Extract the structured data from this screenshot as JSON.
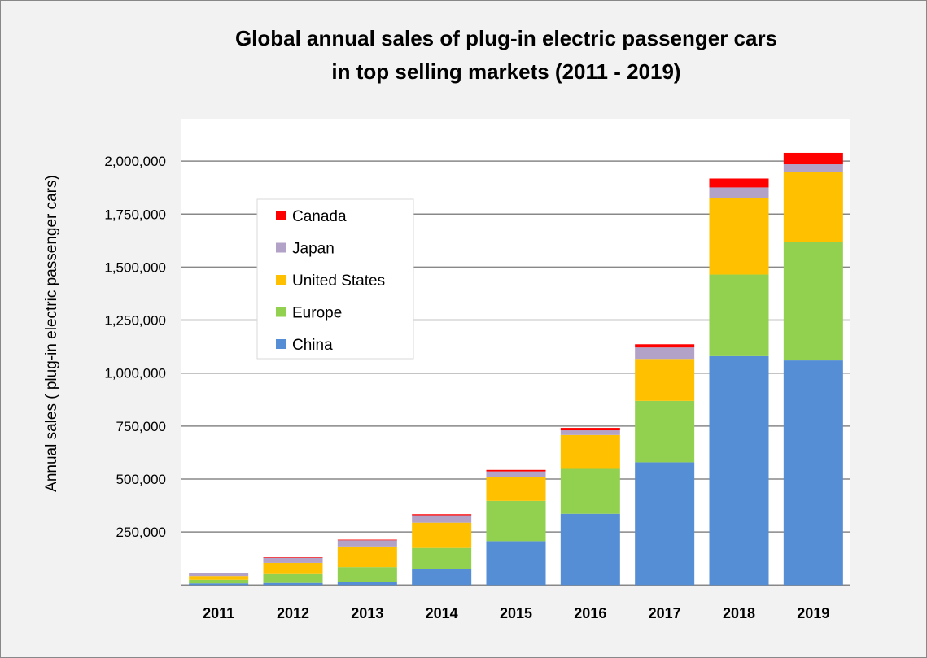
{
  "chart_data": {
    "type": "bar",
    "stacked": true,
    "title": [
      "Global annual sales of plug-in electric passenger cars",
      "in top selling markets (2011 - 2019)"
    ],
    "xlabel": "",
    "ylabel": "Annual sales ( plug-in electric passenger cars)",
    "ylim": [
      0,
      2200000
    ],
    "yticks": [
      250000,
      500000,
      750000,
      1000000,
      1250000,
      1500000,
      1750000,
      2000000
    ],
    "ytick_labels": [
      "250,000",
      "500,000",
      "750,000",
      "1,000,000",
      "1,250,000",
      "1,500,000",
      "1,750,000",
      "2,000,000"
    ],
    "grid": true,
    "legend_placement": "upper-left inside",
    "categories": [
      "2011",
      "2012",
      "2013",
      "2014",
      "2015",
      "2016",
      "2017",
      "2018",
      "2019"
    ],
    "series": [
      {
        "name": "China",
        "color": "#558ed5",
        "values": [
          8000,
          10000,
          15000,
          75000,
          207000,
          336000,
          579000,
          1080000,
          1060000
        ]
      },
      {
        "name": "Europe",
        "color": "#92d050",
        "values": [
          17000,
          42000,
          70000,
          100000,
          190000,
          212000,
          290000,
          385000,
          560000
        ]
      },
      {
        "name": "United States",
        "color": "#ffc000",
        "values": [
          17700,
          53000,
          97000,
          119000,
          114000,
          160000,
          198000,
          361000,
          327000
        ]
      },
      {
        "name": "Japan",
        "color": "#b3a2c7",
        "values": [
          13000,
          24000,
          29000,
          35000,
          25000,
          22000,
          54000,
          50000,
          38000
        ]
      },
      {
        "name": "Canada",
        "color": "#ff0000",
        "values": [
          1000,
          2500,
          3000,
          5000,
          7000,
          11500,
          15000,
          42000,
          54000
        ]
      }
    ],
    "legend_order": [
      "Canada",
      "Japan",
      "United States",
      "Europe",
      "China"
    ]
  }
}
